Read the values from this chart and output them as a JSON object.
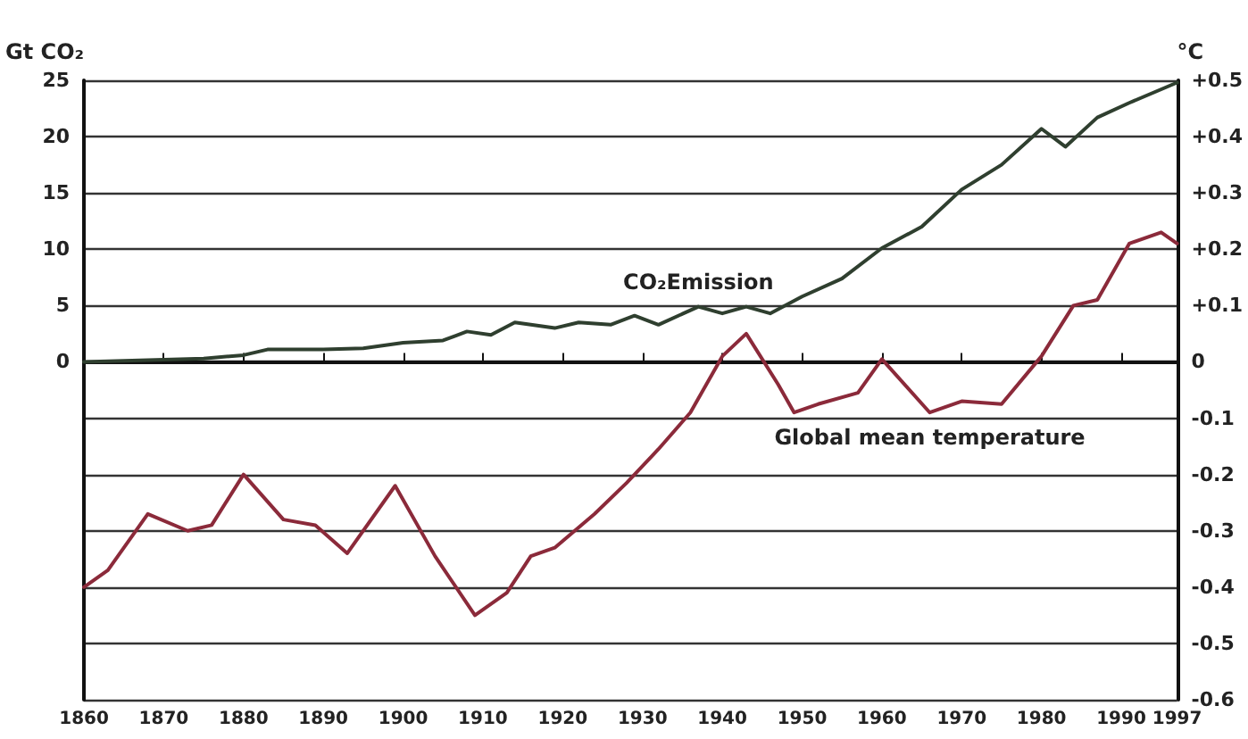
{
  "chart_data": {
    "type": "line",
    "ylabel": "Gt CO₂",
    "y2label": "°C",
    "xlim": [
      1860,
      1997
    ],
    "xticks": [
      1860,
      1870,
      1880,
      1890,
      1900,
      1910,
      1920,
      1930,
      1940,
      1950,
      1960,
      1970,
      1980,
      1990,
      1997
    ],
    "ylim": [
      -30,
      25
    ],
    "yticks": [
      0,
      5,
      10,
      15,
      20,
      25
    ],
    "y2lim": [
      -0.6,
      0.5
    ],
    "y2ticks": [
      {
        "value": 0.5,
        "label": "+0.5"
      },
      {
        "value": 0.4,
        "label": "+0.4"
      },
      {
        "value": 0.3,
        "label": "+0.3"
      },
      {
        "value": 0.2,
        "label": "+0.2"
      },
      {
        "value": 0.1,
        "label": "+0.1"
      },
      0,
      -0.1,
      -0.2,
      -0.3,
      -0.4,
      -0.5,
      -0.6
    ],
    "grid": "y",
    "legend": false,
    "marker": "none",
    "line_style": "solid",
    "series": [
      {
        "name": "CO₂Emission",
        "color": "#2f3f2f",
        "x": [
          1860,
          1870,
          1875,
          1880,
          1883,
          1890,
          1895,
          1900,
          1905,
          1908,
          1911,
          1914,
          1919,
          1922,
          1926,
          1929,
          1932,
          1937,
          1940,
          1943,
          1946,
          1950,
          1955,
          1960,
          1965,
          1970,
          1975,
          1980,
          1983,
          1987,
          1991,
          1997
        ],
        "values": [
          0,
          0.2,
          0.3,
          0.6,
          1.1,
          1.1,
          1.2,
          1.7,
          1.9,
          2.7,
          2.4,
          3.5,
          3.0,
          3.5,
          3.3,
          4.1,
          3.3,
          4.9,
          4.3,
          4.9,
          4.3,
          5.8,
          7.4,
          10.1,
          12.0,
          15.3,
          17.5,
          20.7,
          19.1,
          21.7,
          23.0,
          24.8
        ]
      },
      {
        "name": "Global mean temperature",
        "color": "#8b2a3a",
        "axis": "y2",
        "x": [
          1860,
          1863,
          1868,
          1873,
          1876,
          1880,
          1885,
          1889,
          1893,
          1899,
          1904,
          1909,
          1913,
          1916,
          1919,
          1924,
          1928,
          1932,
          1936,
          1940,
          1943,
          1947,
          1949,
          1952,
          1957,
          1960,
          1966,
          1970,
          1975,
          1980,
          1984,
          1987,
          1991,
          1995,
          1997
        ],
        "values": [
          -0.4,
          -0.37,
          -0.27,
          -0.3,
          -0.29,
          -0.2,
          -0.28,
          -0.29,
          -0.34,
          -0.22,
          -0.345,
          -0.45,
          -0.41,
          -0.345,
          -0.33,
          -0.27,
          -0.215,
          -0.155,
          -0.09,
          0.01,
          0.05,
          -0.04,
          -0.09,
          -0.075,
          -0.055,
          0.005,
          -0.09,
          -0.07,
          -0.075,
          0.01,
          0.1,
          0.11,
          0.21,
          0.23,
          0.21
        ]
      }
    ]
  }
}
